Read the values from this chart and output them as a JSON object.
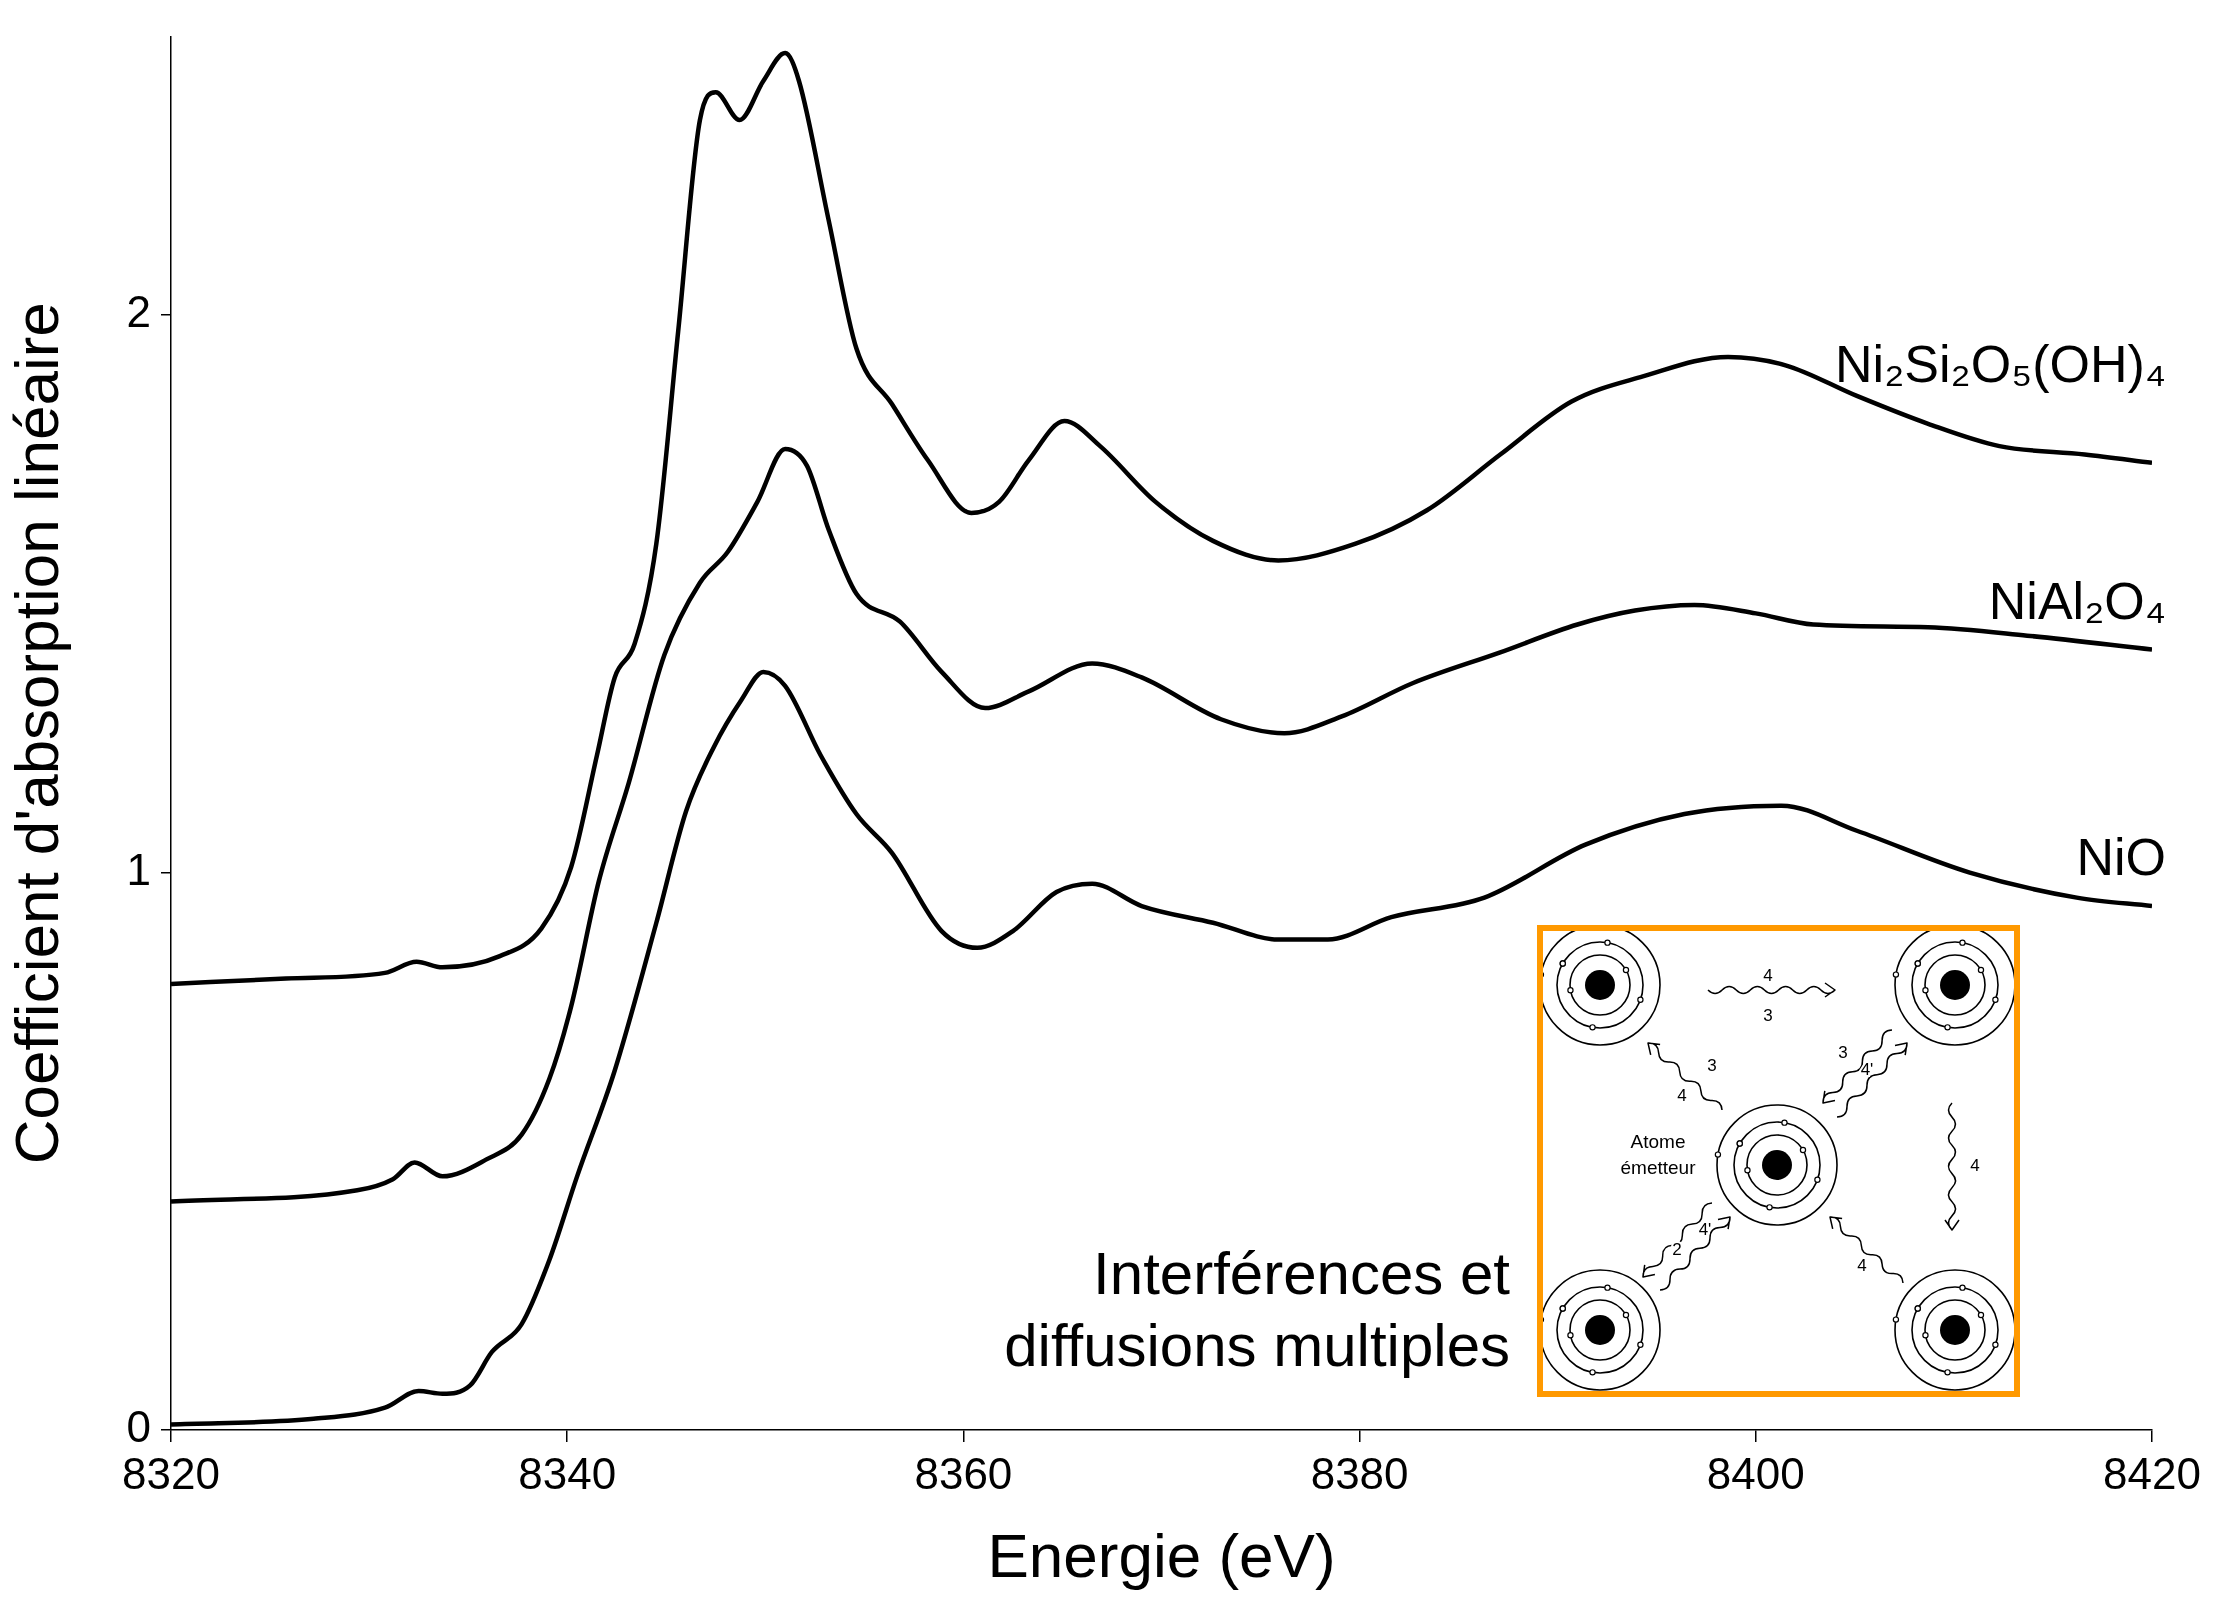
{
  "chart_data": {
    "type": "line",
    "xlabel": "Energie (eV)",
    "ylabel": "Coefficient d'absorption linéaire",
    "xlim": [
      8320,
      8420
    ],
    "xticks": [
      8320,
      8340,
      8360,
      8380,
      8400,
      8420
    ],
    "ylim": [
      0,
      2.5
    ],
    "yticks": [
      0,
      1,
      2
    ],
    "grid": false,
    "legend": false,
    "marker": "none",
    "line_style": "solid",
    "series": [
      {
        "name": "Ni₂Si₂O₅(OH)₄",
        "color": "#000000",
        "x": [
          8320,
          8325.8,
          8330.8,
          8332.4,
          8333.7,
          8336.6,
          8338.7,
          8340.2,
          8341.5,
          8342.4,
          8343.4,
          8344.5,
          8345.6,
          8346.7,
          8347.5,
          8348.7,
          8349.9,
          8351.0,
          8351.7,
          8353.2,
          8354.6,
          8356.4,
          8358.2,
          8360.4,
          8361.8,
          8363.3,
          8365.1,
          8366.9,
          8369.7,
          8372.6,
          8375.9,
          8379.8,
          8383.4,
          8387.1,
          8390.7,
          8394.3,
          8398.6,
          8401.5,
          8405.1,
          8408.7,
          8412.3,
          8416.6,
          8420
        ],
        "values": [
          0.8,
          0.81,
          0.82,
          0.84,
          0.83,
          0.85,
          0.9,
          1.01,
          1.21,
          1.35,
          1.41,
          1.59,
          1.97,
          2.35,
          2.4,
          2.35,
          2.42,
          2.47,
          2.42,
          2.17,
          1.94,
          1.84,
          1.74,
          1.645,
          1.665,
          1.74,
          1.81,
          1.765,
          1.665,
          1.595,
          1.56,
          1.59,
          1.65,
          1.75,
          1.845,
          1.89,
          1.925,
          1.91,
          1.855,
          1.805,
          1.765,
          1.75,
          1.735
        ]
      },
      {
        "name": "NiAl₂O₄",
        "color": "#000000",
        "x": [
          8320,
          8329.4,
          8331.2,
          8332.3,
          8333.7,
          8335.9,
          8337.7,
          8339.1,
          8340.2,
          8341.6,
          8343.1,
          8344.9,
          8346.7,
          8348.1,
          8349.6,
          8351.0,
          8352.1,
          8353.2,
          8354.6,
          8356.8,
          8358.9,
          8361.1,
          8363.3,
          8366.5,
          8369.0,
          8373.0,
          8376.2,
          8379.1,
          8382.7,
          8387.1,
          8391.0,
          8393.9,
          8396.9,
          8400.0,
          8402.9,
          8408.7,
          8413.7,
          8420
        ],
        "values": [
          0.41,
          0.43,
          0.45,
          0.48,
          0.455,
          0.485,
          0.53,
          0.63,
          0.76,
          0.985,
          1.16,
          1.39,
          1.52,
          1.575,
          1.665,
          1.76,
          1.73,
          1.615,
          1.5,
          1.45,
          1.36,
          1.295,
          1.325,
          1.375,
          1.35,
          1.275,
          1.25,
          1.28,
          1.34,
          1.395,
          1.445,
          1.47,
          1.48,
          1.465,
          1.445,
          1.44,
          1.425,
          1.4
        ]
      },
      {
        "name": "NiO",
        "color": "#000000",
        "x": [
          8320,
          8327.2,
          8330.8,
          8332.5,
          8333.7,
          8335.1,
          8336.2,
          8337.7,
          8339.1,
          8340.5,
          8342.4,
          8344.5,
          8346.0,
          8347.4,
          8348.8,
          8349.9,
          8351.0,
          8352.8,
          8354.6,
          8356.4,
          8358.9,
          8360.7,
          8362.5,
          8364.7,
          8366.5,
          8369.0,
          8372.6,
          8375.9,
          8378.4,
          8381.6,
          8386.3,
          8391.4,
          8396.4,
          8401.3,
          8405.1,
          8410.8,
          8416.2,
          8420
        ],
        "values": [
          0.01,
          0.02,
          0.04,
          0.07,
          0.065,
          0.08,
          0.14,
          0.19,
          0.305,
          0.455,
          0.645,
          0.91,
          1.11,
          1.225,
          1.31,
          1.36,
          1.335,
          1.21,
          1.105,
          1.035,
          0.895,
          0.865,
          0.895,
          0.965,
          0.98,
          0.94,
          0.91,
          0.88,
          0.88,
          0.92,
          0.955,
          1.05,
          1.105,
          1.12,
          1.075,
          1.0,
          0.955,
          0.94
        ]
      }
    ],
    "annotations": [
      "Interférences et diffusions multiples",
      "Atome émetteur",
      "4",
      "3",
      "3",
      "4",
      "3",
      "4'",
      "4",
      "4'",
      "2",
      "4"
    ]
  }
}
